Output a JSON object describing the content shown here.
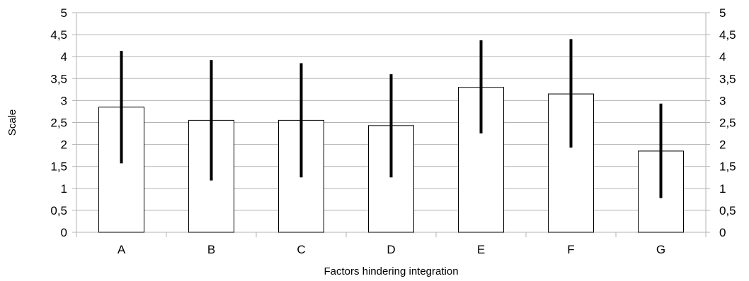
{
  "chart_data": {
    "type": "bar",
    "xlabel": "Factors hindering integration",
    "ylabel": "Scale",
    "ylim": [
      0,
      5
    ],
    "y_ticks": [
      "0",
      "0,5",
      "1",
      "1,5",
      "2",
      "2,5",
      "3",
      "3,5",
      "4",
      "4,5",
      "5"
    ],
    "y_tick_values": [
      0,
      0.5,
      1,
      1.5,
      2,
      2.5,
      3,
      3.5,
      4,
      4.5,
      5
    ],
    "secondary_y_axis": true,
    "grid": true,
    "categories": [
      "A",
      "B",
      "C",
      "D",
      "E",
      "F",
      "G"
    ],
    "values": [
      2.85,
      2.55,
      2.55,
      2.43,
      3.3,
      3.15,
      1.85
    ],
    "error_bars": [
      {
        "low": 1.57,
        "high": 4.13
      },
      {
        "low": 1.18,
        "high": 3.92
      },
      {
        "low": 1.25,
        "high": 3.85
      },
      {
        "low": 1.25,
        "high": 3.6
      },
      {
        "low": 2.25,
        "high": 4.37
      },
      {
        "low": 1.93,
        "high": 4.4
      },
      {
        "low": 0.78,
        "high": 2.93
      }
    ],
    "colors": {
      "bar_fill": "#ffffff",
      "bar_stroke": "#000000",
      "grid": "#b3b3b3",
      "error_bar": "#000000"
    }
  }
}
